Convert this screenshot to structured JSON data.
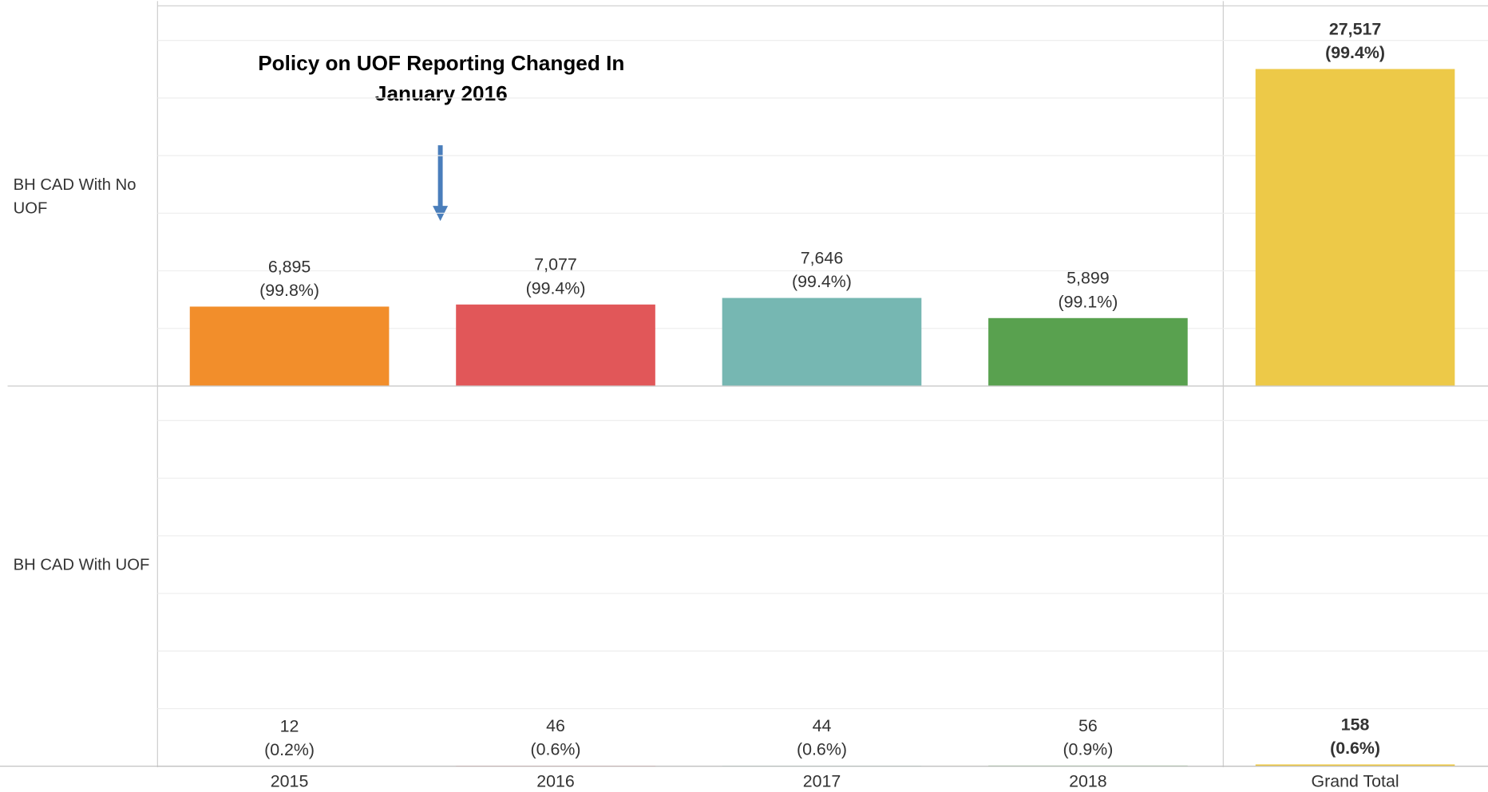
{
  "chart_data": {
    "type": "bar",
    "categories": [
      "2015",
      "2016",
      "2017",
      "2018",
      "Grand Total"
    ],
    "colors": [
      "#f28e2b",
      "#e15759",
      "#76b7b2",
      "#59a14f",
      "#edc948"
    ],
    "rows": [
      {
        "label": "BH CAD With No UOF",
        "values": [
          6895,
          7077,
          7646,
          5899,
          27517
        ],
        "value_labels": [
          "6,895",
          "7,077",
          "7,646",
          "5,899",
          "27,517"
        ],
        "shares": [
          99.8,
          99.4,
          99.4,
          99.1,
          99.4
        ],
        "share_labels": [
          "(99.8%)",
          "(99.4%)",
          "(99.4%)",
          "(99.1%)",
          "(99.4%)"
        ]
      },
      {
        "label": "BH CAD With UOF",
        "values": [
          12,
          46,
          44,
          56,
          158
        ],
        "shares": [
          0.2,
          0.6,
          0.6,
          0.9,
          0.6
        ],
        "share_labels": [
          "(0.2%)",
          "(0.6%)",
          "(0.6%)",
          "(0.9%)",
          "(0.6%)"
        ]
      }
    ],
    "ylim": [
      0,
      33000
    ],
    "yticks": [
      0,
      5000,
      10000,
      15000,
      20000,
      25000,
      30000
    ],
    "grid": true,
    "annotation": "Policy on UOF Reporting Changed In January 2016"
  }
}
